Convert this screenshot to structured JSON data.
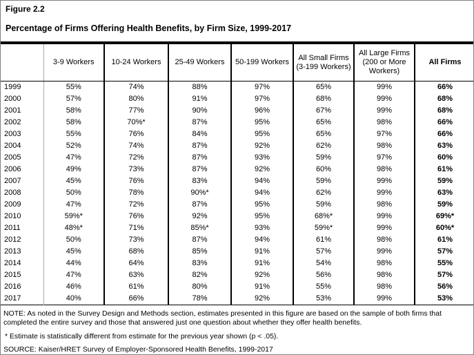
{
  "figure": {
    "label": "Figure 2.2",
    "title": "Percentage of Firms Offering Health Benefits, by Firm Size, 1999-2017"
  },
  "colors": {
    "title_bar": "#000000",
    "table_lines": "#000000",
    "light_divider": "#a8a8a8"
  },
  "table": {
    "columns": [
      "",
      "3-9 Workers",
      "10-24 Workers",
      "25-49 Workers",
      "50-199 Workers",
      "All Small Firms (3-199 Workers)",
      "All Large Firms (200 or More Workers)",
      "All Firms"
    ],
    "rows": [
      {
        "year": "1999",
        "values": [
          "55%",
          "74%",
          "88%",
          "97%",
          "65%",
          "99%",
          "66%"
        ]
      },
      {
        "year": "2000",
        "values": [
          "57%",
          "80%",
          "91%",
          "97%",
          "68%",
          "99%",
          "68%"
        ]
      },
      {
        "year": "2001",
        "values": [
          "58%",
          "77%",
          "90%",
          "96%",
          "67%",
          "99%",
          "68%"
        ]
      },
      {
        "year": "2002",
        "values": [
          "58%",
          "70%*",
          "87%",
          "95%",
          "65%",
          "98%",
          "66%"
        ]
      },
      {
        "year": "2003",
        "values": [
          "55%",
          "76%",
          "84%",
          "95%",
          "65%",
          "97%",
          "66%"
        ]
      },
      {
        "year": "2004",
        "values": [
          "52%",
          "74%",
          "87%",
          "92%",
          "62%",
          "98%",
          "63%"
        ]
      },
      {
        "year": "2005",
        "values": [
          "47%",
          "72%",
          "87%",
          "93%",
          "59%",
          "97%",
          "60%"
        ]
      },
      {
        "year": "2006",
        "values": [
          "49%",
          "73%",
          "87%",
          "92%",
          "60%",
          "98%",
          "61%"
        ]
      },
      {
        "year": "2007",
        "values": [
          "45%",
          "76%",
          "83%",
          "94%",
          "59%",
          "99%",
          "59%"
        ]
      },
      {
        "year": "2008",
        "values": [
          "50%",
          "78%",
          "90%*",
          "94%",
          "62%",
          "99%",
          "63%"
        ]
      },
      {
        "year": "2009",
        "values": [
          "47%",
          "72%",
          "87%",
          "95%",
          "59%",
          "98%",
          "59%"
        ]
      },
      {
        "year": "2010",
        "values": [
          "59%*",
          "76%",
          "92%",
          "95%",
          "68%*",
          "99%",
          "69%*"
        ]
      },
      {
        "year": "2011",
        "values": [
          "48%*",
          "71%",
          "85%*",
          "93%",
          "59%*",
          "99%",
          "60%*"
        ]
      },
      {
        "year": "2012",
        "values": [
          "50%",
          "73%",
          "87%",
          "94%",
          "61%",
          "98%",
          "61%"
        ]
      },
      {
        "year": "2013",
        "values": [
          "45%",
          "68%",
          "85%",
          "91%",
          "57%",
          "99%",
          "57%"
        ]
      },
      {
        "year": "2014",
        "values": [
          "44%",
          "64%",
          "83%",
          "91%",
          "54%",
          "98%",
          "55%"
        ]
      },
      {
        "year": "2015",
        "values": [
          "47%",
          "63%",
          "82%",
          "92%",
          "56%",
          "98%",
          "57%"
        ]
      },
      {
        "year": "2016",
        "values": [
          "46%",
          "61%",
          "80%",
          "91%",
          "55%",
          "98%",
          "56%"
        ]
      },
      {
        "year": "2017",
        "values": [
          "40%",
          "66%",
          "78%",
          "92%",
          "53%",
          "99%",
          "53%"
        ]
      }
    ]
  },
  "notes": {
    "main": "NOTE: As noted in the Survey Design and Methods section, estimates presented in this figure are based on the sample of both firms that completed the entire survey and those that answered just one question about whether they offer health benefits.",
    "asterisk": "* Estimate is statistically different from estimate for the previous year shown (p < .05).",
    "source": "SOURCE: Kaiser/HRET Survey of Employer-Sponsored Health Benefits, 1999-2017"
  },
  "chart_data": {
    "type": "table",
    "title": "Percentage of Firms Offering Health Benefits, by Firm Size, 1999-2017",
    "categories": [
      "1999",
      "2000",
      "2001",
      "2002",
      "2003",
      "2004",
      "2005",
      "2006",
      "2007",
      "2008",
      "2009",
      "2010",
      "2011",
      "2012",
      "2013",
      "2014",
      "2015",
      "2016",
      "2017"
    ],
    "unit": "percent",
    "series": [
      {
        "name": "3-9 Workers",
        "values": [
          55,
          57,
          58,
          58,
          55,
          52,
          47,
          49,
          45,
          50,
          47,
          59,
          48,
          50,
          45,
          44,
          47,
          46,
          40
        ]
      },
      {
        "name": "10-24 Workers",
        "values": [
          74,
          80,
          77,
          70,
          76,
          74,
          72,
          73,
          76,
          78,
          72,
          76,
          71,
          73,
          68,
          64,
          63,
          61,
          66
        ]
      },
      {
        "name": "25-49 Workers",
        "values": [
          88,
          91,
          90,
          87,
          84,
          87,
          87,
          87,
          83,
          90,
          87,
          92,
          85,
          87,
          85,
          83,
          82,
          80,
          78
        ]
      },
      {
        "name": "50-199 Workers",
        "values": [
          97,
          97,
          96,
          95,
          95,
          92,
          93,
          92,
          94,
          94,
          95,
          95,
          93,
          94,
          91,
          91,
          92,
          91,
          92
        ]
      },
      {
        "name": "All Small Firms (3-199 Workers)",
        "values": [
          65,
          68,
          67,
          65,
          65,
          62,
          59,
          60,
          59,
          62,
          59,
          68,
          59,
          61,
          57,
          54,
          56,
          55,
          53
        ]
      },
      {
        "name": "All Large Firms (200 or More Workers)",
        "values": [
          99,
          99,
          99,
          98,
          97,
          98,
          97,
          98,
          99,
          99,
          98,
          99,
          99,
          98,
          99,
          98,
          98,
          98,
          99
        ]
      },
      {
        "name": "All Firms",
        "values": [
          66,
          68,
          68,
          66,
          66,
          63,
          60,
          61,
          59,
          63,
          59,
          69,
          60,
          61,
          57,
          55,
          57,
          56,
          53
        ]
      }
    ],
    "statistically_different_cells": [
      {
        "year": "2002",
        "series": "10-24 Workers"
      },
      {
        "year": "2008",
        "series": "25-49 Workers"
      },
      {
        "year": "2010",
        "series": "3-9 Workers"
      },
      {
        "year": "2010",
        "series": "All Small Firms (3-199 Workers)"
      },
      {
        "year": "2010",
        "series": "All Firms"
      },
      {
        "year": "2011",
        "series": "3-9 Workers"
      },
      {
        "year": "2011",
        "series": "25-49 Workers"
      },
      {
        "year": "2011",
        "series": "All Small Firms (3-199 Workers)"
      },
      {
        "year": "2011",
        "series": "All Firms"
      }
    ]
  }
}
